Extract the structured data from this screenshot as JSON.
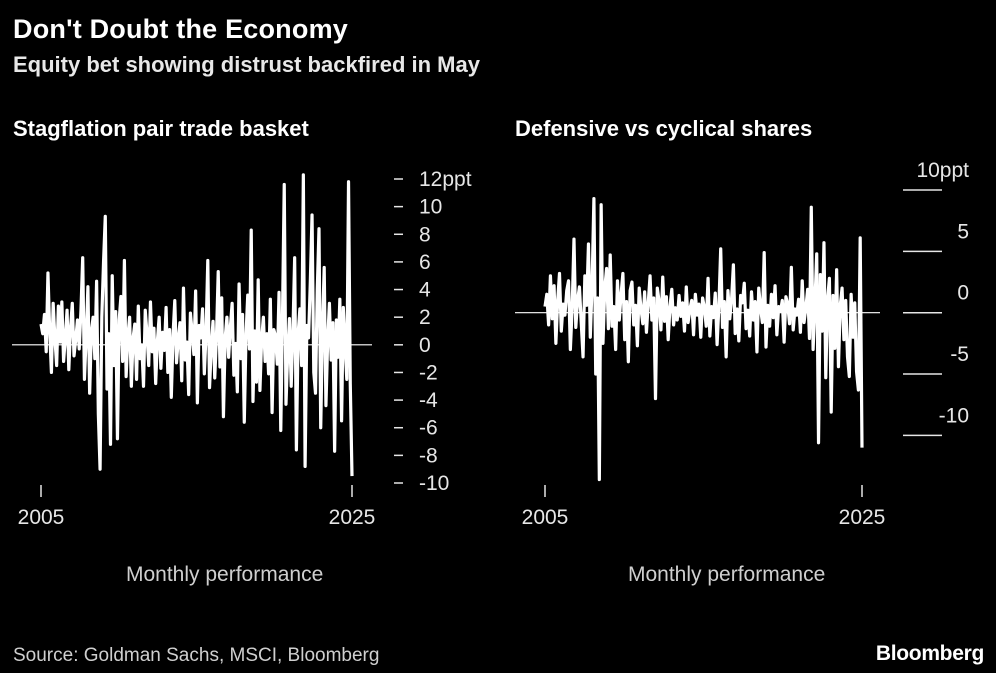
{
  "header": {
    "title": "Don't Doubt the Economy",
    "subtitle": "Equity bet showing distrust backfired in May"
  },
  "chart_data": [
    {
      "type": "line",
      "title": "Stagflation pair trade basket",
      "xlabel": "Monthly performance",
      "ylabel": "",
      "x_tick_labels": [
        "2005",
        "2025"
      ],
      "x_range": [
        2005,
        2025
      ],
      "ylim": [
        -10,
        12
      ],
      "y_ticks": [
        12,
        10,
        8,
        6,
        4,
        2,
        0,
        -2,
        -4,
        -6,
        -8,
        -10
      ],
      "y_tick_labels": [
        "12ppt",
        "10",
        "8",
        "6",
        "4",
        "2",
        "0",
        "-2",
        "-4",
        "-6",
        "-8",
        "-10"
      ],
      "zero_line": true,
      "grid": false,
      "color": "#ffffff",
      "series": [
        {
          "values": [
            1.5,
            0.8,
            2.2,
            -0.5,
            5.2,
            1.0,
            -2.0,
            3.0,
            0.5,
            -1.5,
            2.8,
            0.2,
            3.1,
            -1.2,
            0.5,
            2.5,
            -1.8,
            1.2,
            3.0,
            -0.8,
            0.4,
            1.8,
            -0.3,
            2.5,
            6.3,
            -2.5,
            0.6,
            4.2,
            -3.5,
            1.0,
            2.0,
            -1.0,
            4.6,
            -5.0,
            -9.0,
            2.0,
            6.0,
            9.3,
            -3.2,
            0.8,
            -7.2,
            5.0,
            -1.5,
            2.4,
            -6.8,
            1.8,
            3.5,
            -1.2,
            6.1,
            -2.3,
            0.6,
            2.0,
            -3.0,
            0.5,
            1.5,
            -2.5,
            2.8,
            -1.0,
            0.0,
            -3.0,
            2.5,
            0.8,
            -1.5,
            3.1,
            -0.5,
            1.2,
            -2.8,
            0.3,
            2.0,
            -1.7,
            0.9,
            -0.4,
            2.7,
            -2.0,
            1.1,
            -3.8,
            0.7,
            3.2,
            -1.3,
            0.4,
            1.6,
            -2.6,
            4.1,
            -1.1,
            0.2,
            -3.6,
            2.3,
            0.9,
            -0.7,
            3.9,
            -4.2,
            1.4,
            0.5,
            2.6,
            -2.1,
            0.8,
            6.1,
            -3.1,
            -0.2,
            1.7,
            -2.4,
            0.6,
            5.3,
            -1.6,
            3.4,
            -5.2,
            0.5,
            2.0,
            -0.9,
            1.3,
            3.0,
            -2.2,
            0.1,
            -3.4,
            4.4,
            -1.0,
            2.2,
            -5.6,
            0.7,
            3.6,
            -0.3,
            8.3,
            -4.1,
            1.0,
            -2.7,
            4.7,
            -3.3,
            0.4,
            2.0,
            -1.2,
            0.8,
            -2.1,
            3.3,
            -4.9,
            1.1,
            0.6,
            -1.4,
            3.8,
            -6.2,
            2.1,
            11.6,
            -4.3,
            -0.6,
            1.9,
            -3.0,
            0.9,
            6.3,
            -7.6,
            0.8,
            2.6,
            -1.5,
            12.3,
            -8.8,
            1.4,
            0.5,
            4.5,
            9.4,
            -2.0,
            -3.5,
            3.9,
            8.4,
            -6.0,
            1.2,
            5.6,
            -4.4,
            0.3,
            3.0,
            -1.1,
            1.6,
            -7.7,
            1.8,
            -0.9,
            3.3,
            -5.5,
            2.7,
            0.0,
            -2.5,
            11.8,
            -2.8,
            -9.5
          ]
        }
      ]
    },
    {
      "type": "line",
      "title": "Defensive vs cyclical shares",
      "xlabel": "Monthly performance",
      "ylabel": "",
      "x_tick_labels": [
        "2005",
        "2025"
      ],
      "x_range": [
        2005,
        2025
      ],
      "ylim": [
        -13.8,
        10
      ],
      "y_ticks": [
        10,
        5,
        0,
        -5,
        -10
      ],
      "y_tick_labels": [
        "10ppt",
        "5",
        "0",
        "-5",
        "-10"
      ],
      "zero_line": true,
      "grid": false,
      "color": "#ffffff",
      "series": [
        {
          "values": [
            0.5,
            1.5,
            -1.0,
            3.0,
            -0.5,
            2.2,
            -2.5,
            1.0,
            3.2,
            -1.5,
            0.7,
            -0.2,
            1.8,
            2.6,
            -3.0,
            0.4,
            6.0,
            -1.2,
            1.0,
            2.1,
            -0.8,
            -3.6,
            3.0,
            0.6,
            5.6,
            -2.0,
            2.3,
            9.3,
            -5.0,
            1.2,
            -13.6,
            8.8,
            -2.5,
            2.0,
            3.6,
            -1.3,
            4.7,
            -1.1,
            0.5,
            -3.0,
            2.6,
            -0.6,
            1.5,
            3.2,
            -2.2,
            0.9,
            -4.0,
            1.8,
            2.5,
            -1.0,
            0.6,
            -2.7,
            2.0,
            0.3,
            -0.9,
            1.7,
            -1.6,
            0.8,
            3.0,
            -0.6,
            1.2,
            -7.0,
            2.0,
            0.9,
            -1.4,
            2.9,
            -0.7,
            1.3,
            -2.2,
            0.5,
            1.9,
            -1.0,
            0.4,
            -0.6,
            1.4,
            -0.3,
            0.8,
            -1.5,
            2.1,
            -0.8,
            0.3,
            1.0,
            -1.8,
            1.5,
            -0.2,
            0.7,
            -2.0,
            1.2,
            0.4,
            -1.1,
            2.8,
            -1.9,
            0.5,
            -0.4,
            1.6,
            -2.6,
            0.6,
            5.2,
            -1.2,
            0.9,
            -3.6,
            1.8,
            -0.5,
            1.1,
            3.9,
            -1.7,
            0.3,
            -2.3,
            1.4,
            0.8,
            2.4,
            -1.3,
            0.2,
            -1.9,
            1.7,
            -0.6,
            0.9,
            -3.2,
            2.0,
            0.4,
            -0.8,
            4.9,
            -2.8,
            0.6,
            -1.1,
            1.5,
            -0.4,
            2.2,
            -1.8,
            0.5,
            0.1,
            1.0,
            -2.4,
            1.3,
            0.7,
            -0.9,
            3.7,
            -1.4,
            0.3,
            -0.2,
            1.1,
            -1.6,
            2.6,
            -0.8,
            0.4,
            1.9,
            -2.1,
            8.6,
            -3.0,
            0.7,
            4.8,
            -10.6,
            3.1,
            -1.5,
            5.7,
            -5.3,
            1.1,
            2.8,
            -8.1,
            1.4,
            -2.9,
            3.5,
            -4.4,
            0.6,
            2.0,
            -2.2,
            1.0,
            -3.6,
            -5.2,
            1.5,
            -2.0,
            0.8,
            -4.8,
            -6.3,
            6.1,
            -11.0
          ]
        }
      ]
    }
  ],
  "footnote": "Source: Goldman Sachs, MSCI, Bloomberg",
  "logo": "Bloomberg"
}
